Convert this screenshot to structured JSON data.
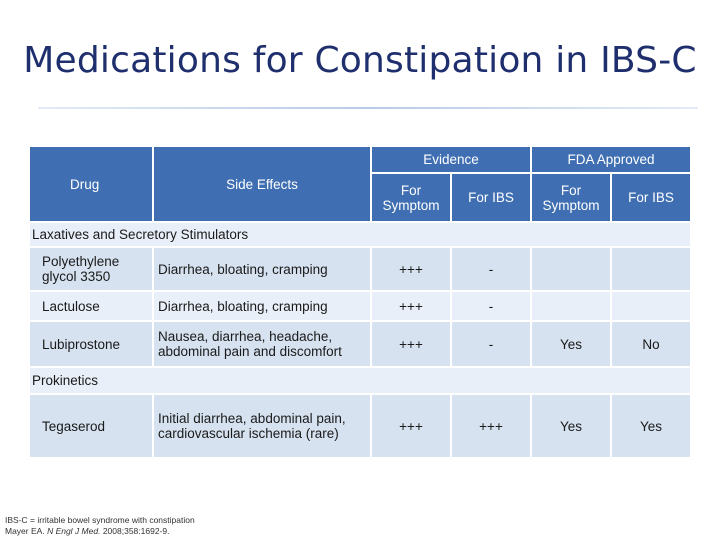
{
  "title": "Medications for Constipation in IBS-C",
  "header": {
    "drug": "Drug",
    "side_effects": "Side Effects",
    "evidence": "Evidence",
    "fda": "FDA Approved",
    "evidence_symptom": "For Symptom",
    "evidence_ibs": "For IBS",
    "fda_symptom": "For Symptom",
    "fda_ibs": "For IBS"
  },
  "sections": [
    {
      "label": "Laxatives and Secretory Stimulators",
      "rows": [
        {
          "drug": "Polyethylene glycol 3350",
          "side_effects": "Diarrhea, bloating, cramping",
          "ev_symptom": "+++",
          "ev_ibs": "-",
          "fda_symptom": "",
          "fda_ibs": ""
        },
        {
          "drug": "Lactulose",
          "side_effects": "Diarrhea, bloating, cramping",
          "ev_symptom": "+++",
          "ev_ibs": "-",
          "fda_symptom": "",
          "fda_ibs": ""
        },
        {
          "drug": "Lubiprostone",
          "side_effects": "Nausea, diarrhea, headache, abdominal pain and discomfort",
          "ev_symptom": "+++",
          "ev_ibs": "-",
          "fda_symptom": "Yes",
          "fda_ibs": "No"
        }
      ]
    },
    {
      "label": "Prokinetics",
      "rows": [
        {
          "drug": "Tegaserod",
          "side_effects": "Initial diarrhea, abdominal pain, cardiovascular ischemia (rare)",
          "ev_symptom": "+++",
          "ev_ibs": "+++",
          "fda_symptom": "Yes",
          "fda_ibs": "Yes"
        }
      ]
    }
  ],
  "footnote": {
    "line1": "IBS-C = irritable bowel syndrome with constipation",
    "line2_prefix": "Mayer EA.",
    "line2_journal": "N Engl J Med.",
    "line2_suffix": "2008;358:1692-9."
  }
}
